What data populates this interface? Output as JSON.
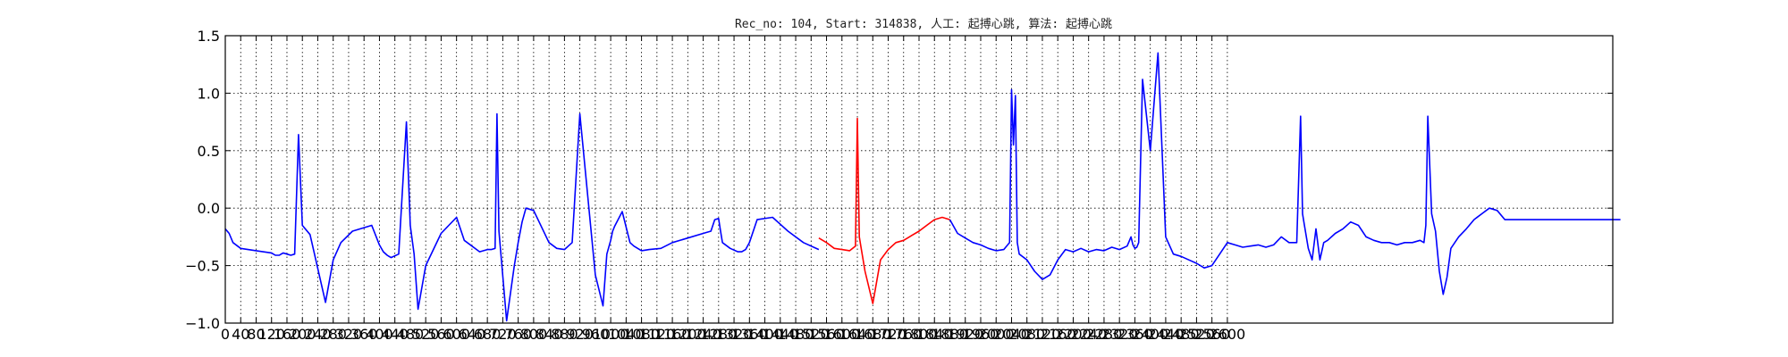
{
  "chart_data": {
    "type": "line",
    "title": "Rec_no: 104, Start: 314838, 人工: 起搏心跳, 算法: 起搏心跳",
    "xlim": [
      0,
      3600
    ],
    "ylim": [
      -1.0,
      1.5
    ],
    "grid": true,
    "x_tick_labels": [
      "0",
      "40",
      "80",
      "120",
      "160",
      "200",
      "240",
      "280",
      "320",
      "360",
      "400",
      "440",
      "480",
      "520",
      "560",
      "600",
      "640",
      "680",
      "720",
      "760",
      "800",
      "840",
      "880",
      "920",
      "960",
      "1000",
      "1040",
      "1080",
      "1120",
      "1160",
      "1200",
      "1240",
      "1280",
      "1320",
      "1360",
      "1400",
      "1440",
      "1480",
      "1520",
      "1560",
      "1600",
      "1640",
      "1680",
      "1720",
      "1760",
      "1800",
      "1840",
      "1880",
      "1920",
      "1960",
      "2000",
      "2040",
      "2080",
      "2120",
      "2160",
      "2200",
      "2240",
      "2280",
      "2320",
      "2360",
      "2400",
      "2440",
      "2480",
      "2520",
      "2560",
      "2600"
    ],
    "y_ticks": [
      -1.0,
      -0.5,
      0.0,
      0.5,
      1.0,
      1.5
    ],
    "y_tick_labels": [
      "−1.0",
      "−0.5",
      "0.0",
      "0.5",
      "1.0",
      "1.5"
    ],
    "series": [
      {
        "color": "#0000ff",
        "x": [
          0,
          10,
          20,
          40,
          80,
          120,
          130,
          140,
          145,
          150,
          160,
          170,
          180,
          190,
          200,
          220,
          260,
          280,
          300,
          330,
          380,
          400,
          410,
          420,
          425,
          430,
          450,
          470,
          480,
          490,
          500,
          520,
          560,
          580,
          600,
          620,
          660,
          680,
          690,
          700,
          705,
          710,
          730,
          750,
          760,
          770,
          780,
          800,
          840,
          860,
          880,
          900,
          920,
          960,
          980,
          990,
          1000,
          1005,
          1010,
          1030,
          1050,
          1060,
          1070,
          1080,
          1100,
          1130,
          1160,
          1200,
          1240,
          1260,
          1270,
          1280,
          1285,
          1290,
          1310,
          1330,
          1340,
          1350,
          1360,
          1380,
          1420,
          1460,
          1500,
          1540
        ],
        "y": [
          -0.18,
          -0.22,
          -0.3,
          -0.35,
          -0.37,
          -0.39,
          -0.41,
          -0.41,
          -0.4,
          -0.39,
          -0.4,
          -0.41,
          -0.4,
          0.64,
          -0.15,
          -0.23,
          -0.82,
          -0.45,
          -0.3,
          -0.2,
          -0.15,
          -0.32,
          -0.38,
          -0.41,
          -0.42,
          -0.43,
          -0.4,
          0.75,
          -0.15,
          -0.4,
          -0.88,
          -0.5,
          -0.22,
          -0.15,
          -0.08,
          -0.28,
          -0.38,
          -0.36,
          -0.36,
          -0.35,
          0.82,
          -0.2,
          -0.98,
          -0.5,
          -0.3,
          -0.12,
          0.0,
          -0.02,
          -0.3,
          -0.35,
          -0.36,
          -0.3,
          0.82,
          -0.58,
          -0.85,
          -0.4,
          -0.28,
          -0.2,
          -0.16,
          -0.03,
          -0.3,
          -0.33,
          -0.35,
          -0.37,
          -0.36,
          -0.35,
          -0.3,
          -0.26,
          -0.22,
          -0.2,
          -0.1,
          -0.09,
          -0.2,
          -0.3,
          -0.35,
          -0.38,
          -0.38,
          -0.36,
          -0.3,
          -0.1,
          -0.08,
          -0.2,
          -0.3,
          -0.36
        ]
      },
      {
        "color": "#ff0000",
        "x": [
          1540,
          1560,
          1580,
          1600,
          1620,
          1635,
          1640,
          1645,
          1650,
          1660,
          1680,
          1700,
          1720,
          1740,
          1760,
          1780,
          1800,
          1820,
          1840,
          1860,
          1880
        ],
        "y": [
          -0.26,
          -0.3,
          -0.35,
          -0.36,
          -0.37,
          -0.33,
          0.78,
          -0.25,
          -0.35,
          -0.55,
          -0.83,
          -0.45,
          -0.36,
          -0.3,
          -0.28,
          -0.24,
          -0.2,
          -0.15,
          -0.1,
          -0.08,
          -0.1
        ]
      },
      {
        "color": "#0000ff",
        "x": [
          1880,
          1900,
          1920,
          1940,
          1960,
          1980,
          2000,
          2020,
          2035,
          2040,
          2045,
          2050,
          2055,
          2060,
          2080,
          2100,
          2120,
          2140,
          2160,
          2180,
          2200,
          2220,
          2240,
          2260,
          2280,
          2300,
          2320,
          2340,
          2350,
          2355,
          2360,
          2365,
          2370,
          2380,
          2400,
          2420,
          2440,
          2460,
          2480,
          2500,
          2520,
          2540,
          2560,
          2580,
          2600,
          2620,
          2640,
          2660,
          2680,
          2700,
          2720,
          2740,
          2760,
          2780,
          2790,
          2795,
          2800,
          2810,
          2820,
          2830,
          2840,
          2850,
          2860,
          2880,
          2900,
          2920,
          2940,
          2960,
          2980,
          3000,
          3020,
          3040,
          3060,
          3080,
          3100,
          3110,
          3115,
          3120,
          3130,
          3140,
          3150,
          3160,
          3170,
          3180,
          3200,
          3220,
          3240,
          3260,
          3280,
          3300,
          3320,
          3340,
          3360,
          3380,
          3400,
          3420,
          3430,
          3435,
          3440,
          3450,
          3470,
          3490,
          3500,
          3510,
          3530,
          3550,
          3570,
          3590,
          3600,
          3610,
          3620
        ],
        "y": [
          -0.1,
          -0.22,
          -0.26,
          -0.3,
          -0.32,
          -0.35,
          -0.37,
          -0.36,
          -0.3,
          1.03,
          0.55,
          0.98,
          -0.3,
          -0.4,
          -0.45,
          -0.55,
          -0.62,
          -0.58,
          -0.45,
          -0.36,
          -0.38,
          -0.35,
          -0.38,
          -0.36,
          -0.37,
          -0.34,
          -0.36,
          -0.33,
          -0.25,
          -0.32,
          -0.35,
          -0.34,
          -0.3,
          1.12,
          0.5,
          1.35,
          -0.25,
          -0.4,
          -0.42,
          -0.45,
          -0.48,
          -0.52,
          -0.5,
          -0.4,
          -0.3,
          -0.32,
          -0.34,
          -0.33,
          -0.32,
          -0.34,
          -0.32,
          -0.25,
          -0.3,
          -0.3,
          0.8,
          -0.05,
          -0.15,
          -0.35,
          -0.45,
          -0.18,
          -0.45,
          -0.3,
          -0.28,
          -0.22,
          -0.18,
          -0.12,
          -0.15,
          -0.25,
          -0.28,
          -0.3,
          -0.3,
          -0.32,
          -0.3,
          -0.3,
          -0.28,
          -0.3,
          -0.15,
          0.8,
          -0.05,
          -0.2,
          -0.55,
          -0.75,
          -0.6,
          -0.35,
          -0.25,
          -0.18,
          -0.1,
          -0.05,
          0.0,
          -0.02,
          -0.1,
          -0.1,
          -0.1,
          -0.1,
          -0.1,
          -0.1,
          -0.1,
          -0.1,
          -0.1,
          -0.1,
          -0.1,
          -0.1,
          -0.1,
          -0.1,
          -0.1,
          -0.1,
          -0.1,
          -0.1,
          -0.1,
          -0.1,
          -0.1
        ]
      }
    ]
  }
}
